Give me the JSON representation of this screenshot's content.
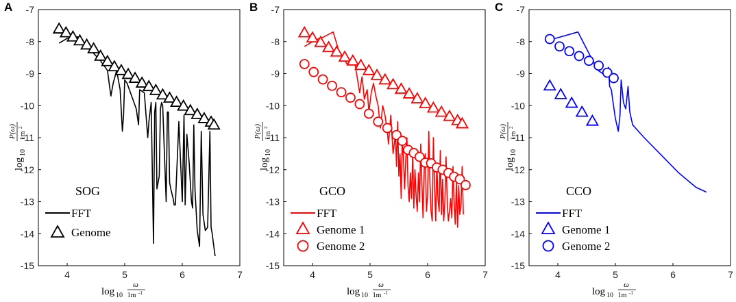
{
  "figure": {
    "x_axis_label": {
      "log": "log",
      "sub": "10",
      "num": "ω",
      "den": "1m",
      "den_exp": "-1"
    },
    "y_axis_label": {
      "log": "log",
      "sub": "10",
      "num": "P(ω)",
      "den": "1m",
      "den_exp": "2"
    }
  },
  "chart_data": [
    {
      "type": "line",
      "panel_letter": "A",
      "dataset_name": "SOG",
      "color": "#000000",
      "xlim": [
        3.5,
        7
      ],
      "ylim": [
        -15,
        -7
      ],
      "xticks": [
        "4",
        "5",
        "6",
        "7"
      ],
      "yticks": [
        "-7",
        "-8",
        "-9",
        "-10",
        "-11",
        "-12",
        "-13",
        "-14",
        "-15"
      ],
      "legend_location": "bottom-left",
      "legend": [
        {
          "label": "FFT",
          "kind": "line"
        },
        {
          "label": "Genome",
          "kind": "triangle"
        }
      ],
      "series": [
        {
          "name": "FFT",
          "x": [
            3.86,
            4.0,
            4.18,
            4.3,
            4.45,
            4.58,
            4.7,
            4.73,
            4.76,
            4.8,
            4.86,
            4.92,
            4.96,
            4.98,
            5.0,
            5.04,
            5.14,
            5.2,
            5.24,
            5.26,
            5.34,
            5.4,
            5.42,
            5.46,
            5.5,
            5.52,
            5.54,
            5.56,
            5.6,
            5.62,
            5.64,
            5.66,
            5.72,
            5.74,
            5.76,
            5.78,
            5.8,
            5.84,
            5.86,
            5.88,
            5.94,
            6.0,
            6.03,
            6.05,
            6.08,
            6.12,
            6.16,
            6.18,
            6.2,
            6.22,
            6.26,
            6.3,
            6.33,
            6.36,
            6.4,
            6.44,
            6.48,
            6.5,
            6.52,
            6.54,
            6.57
          ],
          "y": [
            -8.05,
            -7.9,
            -7.85,
            -8.1,
            -8.35,
            -8.6,
            -8.9,
            -9.3,
            -9.7,
            -9.3,
            -8.9,
            -9.5,
            -10.8,
            -10.3,
            -9.2,
            -9.3,
            -9.8,
            -10.1,
            -10.6,
            -9.5,
            -9.6,
            -11.0,
            -10.5,
            -9.9,
            -14.3,
            -10.2,
            -9.9,
            -12.6,
            -12.2,
            -10.1,
            -9.9,
            -10.0,
            -13.0,
            -10.2,
            -10.2,
            -12.4,
            -12.6,
            -12.9,
            -13.1,
            -13.1,
            -10.5,
            -13.0,
            -10.3,
            -13.1,
            -10.9,
            -11.8,
            -13.0,
            -13.2,
            -10.6,
            -12.6,
            -13.9,
            -14.4,
            -10.8,
            -13.4,
            -13.9,
            -13.8,
            -10.8,
            -13.8,
            -14.0,
            -14.3,
            -14.7
          ]
        },
        {
          "name": "Genome",
          "marker": "triangle",
          "x": [
            3.86,
            3.98,
            4.1,
            4.22,
            4.34,
            4.46,
            4.58,
            4.7,
            4.82,
            4.94,
            5.06,
            5.18,
            5.3,
            5.42,
            5.54,
            5.66,
            5.78,
            5.9,
            6.02,
            6.14,
            6.26,
            6.38,
            6.5,
            6.55
          ],
          "y": [
            -7.6,
            -7.72,
            -7.85,
            -7.97,
            -8.1,
            -8.22,
            -8.45,
            -8.62,
            -8.78,
            -8.9,
            -9.02,
            -9.14,
            -9.29,
            -9.4,
            -9.52,
            -9.66,
            -9.76,
            -9.89,
            -10.01,
            -10.15,
            -10.27,
            -10.4,
            -10.51,
            -10.6
          ]
        }
      ]
    },
    {
      "type": "line",
      "panel_letter": "B",
      "dataset_name": "GCO",
      "color": "#ff0000",
      "xlim": [
        3.5,
        7
      ],
      "ylim": [
        -15,
        -7
      ],
      "xticks": [
        "4",
        "5",
        "6",
        "7"
      ],
      "yticks": [
        "-7",
        "-8",
        "-9",
        "-10",
        "-11",
        "-12",
        "-13",
        "-14",
        "-15"
      ],
      "legend_location": "bottom-left",
      "legend": [
        {
          "label": "FFT",
          "kind": "line"
        },
        {
          "label": "Genome 1",
          "kind": "triangle"
        },
        {
          "label": "Genome 2",
          "kind": "circle"
        }
      ],
      "series": [
        {
          "name": "FFT",
          "x": [
            3.86,
            4.05,
            4.2,
            4.36,
            4.46,
            4.6,
            4.72,
            4.82,
            4.86,
            4.88,
            4.9,
            4.95,
            4.98,
            5.02,
            5.06,
            5.1,
            5.14,
            5.18,
            5.22,
            5.26,
            5.3,
            5.32,
            5.36,
            5.4,
            5.44,
            5.46,
            5.48,
            5.5,
            5.52,
            5.54,
            5.56,
            5.58,
            5.6,
            5.62,
            5.64,
            5.66,
            5.68,
            5.7,
            5.72,
            5.74,
            5.76,
            5.78,
            5.8,
            5.82,
            5.84,
            5.86,
            5.88,
            5.9,
            5.92,
            5.94,
            5.96,
            5.98,
            6.0,
            6.02,
            6.04,
            6.06,
            6.08,
            6.1,
            6.12,
            6.14,
            6.16,
            6.18,
            6.2,
            6.22,
            6.24,
            6.26,
            6.28,
            6.3,
            6.32,
            6.34,
            6.36,
            6.38,
            6.4,
            6.42,
            6.44,
            6.46,
            6.48,
            6.5,
            6.52,
            6.54,
            6.56,
            6.58,
            6.6,
            6.62
          ],
          "y": [
            -8.15,
            -7.95,
            -7.85,
            -7.7,
            -8.3,
            -8.7,
            -8.5,
            -9.6,
            -9.1,
            -9.4,
            -9.8,
            -9.5,
            -10.2,
            -9.6,
            -9.3,
            -9.7,
            -10.0,
            -10.7,
            -10.0,
            -10.3,
            -10.8,
            -11.2,
            -10.3,
            -11.5,
            -10.9,
            -11.9,
            -10.5,
            -12.2,
            -11.5,
            -12.9,
            -11.1,
            -11.6,
            -12.6,
            -11.7,
            -11.0,
            -12.5,
            -13.0,
            -12.1,
            -12.9,
            -11.5,
            -13.2,
            -12.0,
            -12.8,
            -13.3,
            -12.1,
            -13.0,
            -11.2,
            -12.4,
            -13.5,
            -12.0,
            -11.5,
            -13.3,
            -12.8,
            -10.8,
            -12.4,
            -13.3,
            -13.6,
            -11.0,
            -12.5,
            -13.6,
            -11.8,
            -12.9,
            -13.3,
            -11.4,
            -13.4,
            -12.3,
            -13.6,
            -13.0,
            -11.6,
            -13.0,
            -13.6,
            -13.3,
            -12.9,
            -13.5,
            -11.9,
            -13.0,
            -13.7,
            -12.4,
            -13.8,
            -12.5,
            -13.4,
            -13.1,
            -11.9,
            -13.4
          ]
        },
        {
          "name": "Genome 1",
          "marker": "triangle",
          "x": [
            3.86,
            4.0,
            4.14,
            4.28,
            4.42,
            4.56,
            4.7,
            4.84,
            4.98,
            5.12,
            5.26,
            5.4,
            5.54,
            5.68,
            5.82,
            5.96,
            6.1,
            6.24,
            6.38,
            6.52,
            6.6
          ],
          "y": [
            -7.72,
            -7.88,
            -8.02,
            -8.18,
            -8.32,
            -8.48,
            -8.6,
            -8.74,
            -8.9,
            -9.05,
            -9.19,
            -9.34,
            -9.48,
            -9.63,
            -9.78,
            -9.93,
            -10.07,
            -10.2,
            -10.33,
            -10.46,
            -10.56
          ]
        },
        {
          "name": "Genome 2",
          "marker": "circle",
          "x": [
            3.86,
            4.02,
            4.18,
            4.34,
            4.5,
            4.66,
            4.82,
            4.98,
            5.14,
            5.3,
            5.46,
            5.56,
            5.66,
            5.76,
            5.86,
            5.96,
            6.06,
            6.16,
            6.26,
            6.36,
            6.46,
            6.56,
            6.66
          ],
          "y": [
            -8.7,
            -8.95,
            -9.18,
            -9.38,
            -9.58,
            -9.75,
            -9.95,
            -10.25,
            -10.5,
            -10.7,
            -10.92,
            -11.1,
            -11.38,
            -11.48,
            -11.6,
            -11.78,
            -11.8,
            -11.93,
            -12.0,
            -12.1,
            -12.22,
            -12.3,
            -12.48
          ]
        }
      ]
    },
    {
      "type": "line",
      "panel_letter": "C",
      "dataset_name": "CCO",
      "color": "#0000ff",
      "xlim": [
        3.5,
        7
      ],
      "ylim": [
        -15,
        -7
      ],
      "xticks": [
        "4",
        "5",
        "6",
        "7"
      ],
      "yticks": [
        "-7",
        "-8",
        "-9",
        "-10",
        "-11",
        "-12",
        "-13",
        "-14",
        "-15"
      ],
      "legend_location": "bottom-left",
      "legend": [
        {
          "label": "FFT",
          "kind": "line"
        },
        {
          "label": "Genome 1",
          "kind": "triangle"
        },
        {
          "label": "Genome 2",
          "kind": "circle"
        }
      ],
      "series": [
        {
          "name": "FFT",
          "x": [
            3.86,
            4.35,
            4.55,
            4.7,
            4.82,
            4.88,
            4.9,
            4.93,
            4.96,
            5.0,
            5.05,
            5.08,
            5.1,
            5.14,
            5.18,
            5.22,
            5.25,
            5.3,
            5.5,
            5.8,
            6.1,
            6.4,
            6.58
          ],
          "y": [
            -7.95,
            -7.7,
            -8.4,
            -8.9,
            -9.05,
            -8.8,
            -9.4,
            -9.5,
            -9.9,
            -10.4,
            -10.8,
            -10.3,
            -9.2,
            -9.9,
            -10.1,
            -9.4,
            -10.2,
            -10.6,
            -11.0,
            -11.55,
            -12.1,
            -12.55,
            -12.7
          ]
        },
        {
          "name": "Genome 1",
          "marker": "triangle",
          "x": [
            3.86,
            4.05,
            4.24,
            4.42,
            4.6
          ],
          "y": [
            -9.38,
            -9.65,
            -9.92,
            -10.2,
            -10.48
          ]
        },
        {
          "name": "Genome 2",
          "marker": "circle",
          "x": [
            3.86,
            4.03,
            4.2,
            4.37,
            4.54,
            4.71,
            4.86,
            4.97
          ],
          "y": [
            -7.92,
            -8.15,
            -8.3,
            -8.45,
            -8.6,
            -8.75,
            -8.97,
            -9.14
          ]
        }
      ]
    }
  ]
}
